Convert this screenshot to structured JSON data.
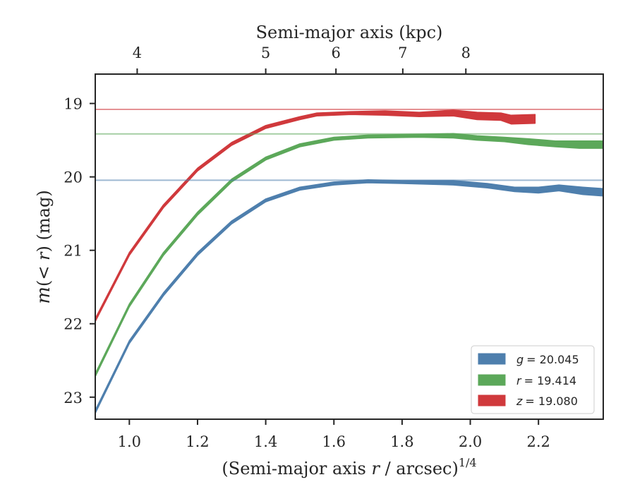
{
  "chart_data": {
    "type": "line",
    "xlabel_pre": "(Semi-major axis ",
    "xlabel_var": "r",
    "xlabel_post": " / arcsec)",
    "xlabel_sup": "1/4",
    "ylabel_pre": "m",
    "ylabel_mid": "(< ",
    "ylabel_var": "r",
    "ylabel_post": ") (mag)",
    "top_xlabel": "Semi-major axis (kpc)",
    "xlim": [
      0.9,
      2.39
    ],
    "ylim": [
      23.3,
      18.6
    ],
    "y_inverted": true,
    "x_ticks": [
      1.0,
      1.2,
      1.4,
      1.6,
      1.8,
      2.0,
      2.2
    ],
    "x_tick_labels": [
      "1.0",
      "1.2",
      "1.4",
      "1.6",
      "1.8",
      "2.0",
      "2.2"
    ],
    "y_ticks": [
      19,
      20,
      21,
      22,
      23
    ],
    "y_tick_labels": [
      "19",
      "20",
      "21",
      "22",
      "23"
    ],
    "top_x_ticks_kpc": [
      4,
      5,
      6,
      7,
      8
    ],
    "top_x_ticks_at_bottom_x": [
      1.023,
      1.4,
      1.606,
      1.802,
      1.987
    ],
    "top_x_tick_labels": [
      "4",
      "5",
      "6",
      "7",
      "8"
    ],
    "legend_position": "lower-right",
    "grid": false,
    "series": [
      {
        "name": "g = 20.045",
        "legend_var": "g",
        "legend_value": "= 20.045",
        "color": "#4e7fad",
        "asymptote": 20.045,
        "x": [
          0.9,
          1.0,
          1.1,
          1.2,
          1.3,
          1.4,
          1.5,
          1.6,
          1.7,
          1.8,
          1.95,
          2.05,
          2.13,
          2.2,
          2.26,
          2.33,
          2.39
        ],
        "y": [
          23.2,
          22.25,
          21.6,
          21.05,
          20.62,
          20.32,
          20.16,
          20.09,
          20.06,
          20.07,
          20.08,
          20.12,
          20.17,
          20.18,
          20.15,
          20.19,
          20.21
        ],
        "band": [
          0.02,
          0.02,
          0.02,
          0.02,
          0.02,
          0.02,
          0.02,
          0.02,
          0.02,
          0.02,
          0.03,
          0.03,
          0.03,
          0.04,
          0.04,
          0.05,
          0.05
        ]
      },
      {
        "name": "r = 19.414",
        "legend_var": "r",
        "legend_value": "= 19.414",
        "color": "#5ca85a",
        "asymptote": 19.414,
        "x": [
          0.9,
          1.0,
          1.1,
          1.2,
          1.3,
          1.4,
          1.5,
          1.6,
          1.7,
          1.85,
          1.95,
          2.02,
          2.1,
          2.17,
          2.25,
          2.32,
          2.39
        ],
        "y": [
          22.7,
          21.75,
          21.05,
          20.5,
          20.05,
          19.75,
          19.57,
          19.48,
          19.45,
          19.44,
          19.44,
          19.47,
          19.49,
          19.52,
          19.55,
          19.56,
          19.56
        ],
        "band": [
          0.02,
          0.02,
          0.02,
          0.02,
          0.02,
          0.02,
          0.02,
          0.02,
          0.02,
          0.02,
          0.03,
          0.03,
          0.03,
          0.04,
          0.04,
          0.05,
          0.05
        ]
      },
      {
        "name": "z = 19.080",
        "legend_var": "z",
        "legend_value": "= 19.080",
        "color": "#d0393c",
        "asymptote": 19.08,
        "x": [
          0.9,
          1.0,
          1.1,
          1.2,
          1.3,
          1.4,
          1.5,
          1.55,
          1.65,
          1.75,
          1.85,
          1.95,
          2.02,
          2.09,
          2.12,
          2.19
        ],
        "y": [
          21.95,
          21.05,
          20.4,
          19.9,
          19.55,
          19.32,
          19.2,
          19.15,
          19.13,
          19.13,
          19.15,
          19.13,
          19.17,
          19.18,
          19.22,
          19.21
        ],
        "band": [
          0.02,
          0.02,
          0.02,
          0.02,
          0.02,
          0.02,
          0.02,
          0.02,
          0.02,
          0.03,
          0.03,
          0.04,
          0.05,
          0.05,
          0.06,
          0.06
        ]
      }
    ]
  }
}
